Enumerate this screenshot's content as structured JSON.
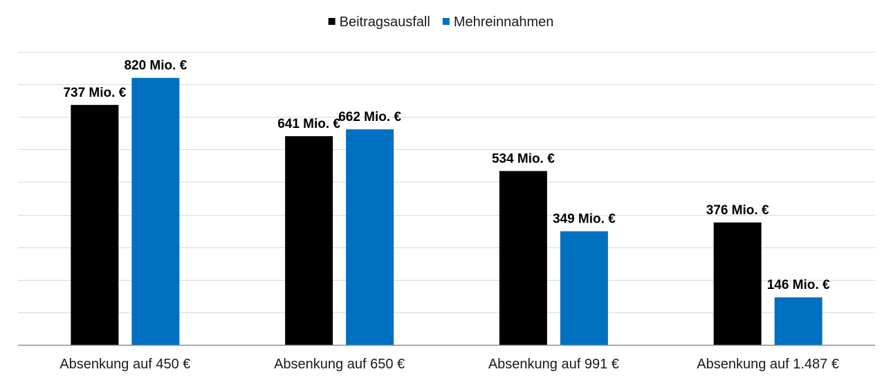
{
  "chart_data": {
    "type": "bar",
    "categories": [
      "Absenkung auf 450 €",
      "Absenkung auf 650 €",
      "Absenkung auf 991 €",
      "Absenkung auf 1.487 €"
    ],
    "series": [
      {
        "name": "Beitragsausfall",
        "color": "#000000",
        "values": [
          737,
          641,
          534,
          376
        ],
        "labels": [
          "737  Mio. €",
          "641  Mio. €",
          "534  Mio. €",
          "376  Mio. €"
        ]
      },
      {
        "name": "Mehreinnahmen",
        "color": "#0070C0",
        "values": [
          820,
          662,
          349,
          146
        ],
        "labels": [
          "820  Mio. €",
          "662  Mio. €",
          "349  Mio. €",
          "146  Mio. €"
        ]
      }
    ],
    "ylim": [
      0,
      900
    ],
    "gridlines": true,
    "gridline_step": 100,
    "legend_position": "top-center",
    "title": "",
    "xlabel": "",
    "ylabel": ""
  }
}
